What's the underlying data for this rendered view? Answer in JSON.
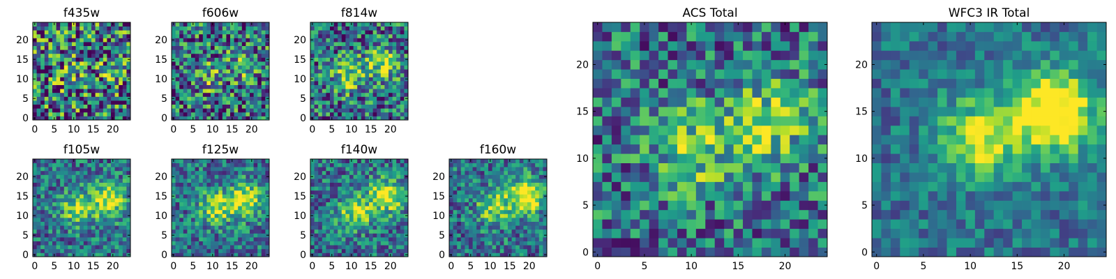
{
  "chart_data": [
    {
      "type": "heatmap",
      "title": "f435w",
      "xticks": [
        0,
        5,
        10,
        15,
        20
      ],
      "yticks": [
        0,
        5,
        10,
        15,
        20
      ],
      "xlim": [
        0,
        25
      ],
      "ylim": [
        0,
        25
      ],
      "grid_size": 25,
      "colormap": "viridis",
      "seed": 11,
      "noise": 0.55,
      "clumps": [
        {
          "x": 9,
          "y": 11,
          "amp": 0.15
        },
        {
          "x": 18,
          "y": 14,
          "amp": 0.15
        }
      ]
    },
    {
      "type": "heatmap",
      "title": "f606w",
      "xticks": [
        0,
        5,
        10,
        15,
        20
      ],
      "yticks": [
        0,
        5,
        10,
        15,
        20
      ],
      "xlim": [
        0,
        25
      ],
      "ylim": [
        0,
        25
      ],
      "grid_size": 25,
      "colormap": "viridis",
      "seed": 23,
      "noise": 0.45,
      "clumps": [
        {
          "x": 9,
          "y": 11,
          "amp": 0.25
        },
        {
          "x": 18,
          "y": 14,
          "amp": 0.25
        }
      ]
    },
    {
      "type": "heatmap",
      "title": "f814w",
      "xticks": [
        0,
        5,
        10,
        15,
        20
      ],
      "yticks": [
        0,
        5,
        10,
        15,
        20
      ],
      "xlim": [
        0,
        25
      ],
      "ylim": [
        0,
        25
      ],
      "grid_size": 25,
      "colormap": "viridis",
      "seed": 37,
      "noise": 0.4,
      "clumps": [
        {
          "x": 9,
          "y": 11,
          "amp": 0.4
        },
        {
          "x": 18,
          "y": 14,
          "amp": 0.45
        }
      ]
    },
    {
      "type": "heatmap",
      "title": "f105w",
      "xticks": [
        0,
        5,
        10,
        15,
        20
      ],
      "yticks": [
        0,
        5,
        10,
        15,
        20
      ],
      "xlim": [
        0,
        25
      ],
      "ylim": [
        0,
        25
      ],
      "grid_size": 25,
      "colormap": "viridis",
      "seed": 41,
      "noise": 0.3,
      "clumps": [
        {
          "x": 11,
          "y": 12,
          "amp": 0.45
        },
        {
          "x": 19,
          "y": 14,
          "amp": 0.6
        }
      ]
    },
    {
      "type": "heatmap",
      "title": "f125w",
      "xticks": [
        0,
        5,
        10,
        15,
        20
      ],
      "yticks": [
        0,
        5,
        10,
        15,
        20
      ],
      "xlim": [
        0,
        25
      ],
      "ylim": [
        0,
        25
      ],
      "grid_size": 25,
      "colormap": "viridis",
      "seed": 53,
      "noise": 0.3,
      "clumps": [
        {
          "x": 11,
          "y": 12,
          "amp": 0.5
        },
        {
          "x": 19,
          "y": 14,
          "amp": 0.6
        }
      ]
    },
    {
      "type": "heatmap",
      "title": "f140w",
      "xticks": [
        0,
        5,
        10,
        15,
        20
      ],
      "yticks": [
        0,
        5,
        10,
        15,
        20
      ],
      "xlim": [
        0,
        25
      ],
      "ylim": [
        0,
        25
      ],
      "grid_size": 25,
      "colormap": "viridis",
      "seed": 67,
      "noise": 0.3,
      "clumps": [
        {
          "x": 11,
          "y": 11,
          "amp": 0.5
        },
        {
          "x": 19,
          "y": 15,
          "amp": 0.65
        }
      ]
    },
    {
      "type": "heatmap",
      "title": "f160w",
      "xticks": [
        0,
        5,
        10,
        15,
        20
      ],
      "yticks": [
        0,
        5,
        10,
        15,
        20
      ],
      "xlim": [
        0,
        25
      ],
      "ylim": [
        0,
        25
      ],
      "grid_size": 25,
      "colormap": "viridis",
      "seed": 79,
      "noise": 0.3,
      "clumps": [
        {
          "x": 11,
          "y": 12,
          "amp": 0.45
        },
        {
          "x": 19,
          "y": 15,
          "amp": 0.75
        }
      ]
    },
    {
      "type": "heatmap",
      "title": "ACS Total",
      "xticks": [
        0,
        5,
        10,
        15,
        20
      ],
      "yticks": [
        0,
        5,
        10,
        15,
        20
      ],
      "xlim": [
        0,
        25
      ],
      "ylim": [
        0,
        25
      ],
      "grid_size": 25,
      "colormap": "viridis",
      "seed": 97,
      "noise": 0.35,
      "clumps": [
        {
          "x": 10,
          "y": 11,
          "amp": 0.4
        },
        {
          "x": 18,
          "y": 14,
          "amp": 0.45
        }
      ]
    },
    {
      "type": "heatmap",
      "title": "WFC3 IR Total",
      "xticks": [
        0,
        5,
        10,
        15,
        20
      ],
      "yticks": [
        0,
        5,
        10,
        15,
        20
      ],
      "xlim": [
        0,
        25
      ],
      "ylim": [
        0,
        25
      ],
      "grid_size": 25,
      "colormap": "viridis",
      "seed": 113,
      "noise": 0.2,
      "clumps": [
        {
          "x": 11,
          "y": 12,
          "amp": 0.55
        },
        {
          "x": 19,
          "y": 15,
          "amp": 0.8
        }
      ]
    }
  ]
}
